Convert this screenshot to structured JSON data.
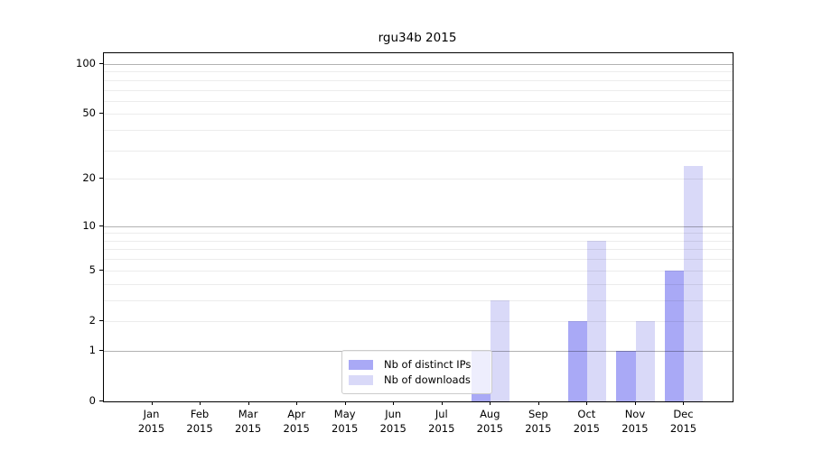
{
  "chart_data": {
    "type": "bar",
    "title": "rgu34b 2015",
    "categories": [
      "Jan",
      "Feb",
      "Mar",
      "Apr",
      "May",
      "Jun",
      "Jul",
      "Aug",
      "Sep",
      "Oct",
      "Nov",
      "Dec"
    ],
    "year_label": "2015",
    "series": [
      {
        "name": "Nb of distinct IPs",
        "color": "#a9a9f6",
        "values": [
          0,
          0,
          0,
          0,
          0,
          0,
          0,
          1,
          0,
          2,
          1,
          5
        ]
      },
      {
        "name": "Nb of downloads",
        "color": "#d9d9f8",
        "values": [
          0,
          0,
          0,
          0,
          0,
          0,
          0,
          3,
          0,
          8,
          2,
          24
        ]
      }
    ],
    "yscale": "log1p",
    "yticks": [
      0,
      1,
      2,
      5,
      10,
      20,
      50,
      100
    ],
    "ylim": [
      0,
      116
    ],
    "grid": "horizontal",
    "legend_position": "lower center"
  }
}
